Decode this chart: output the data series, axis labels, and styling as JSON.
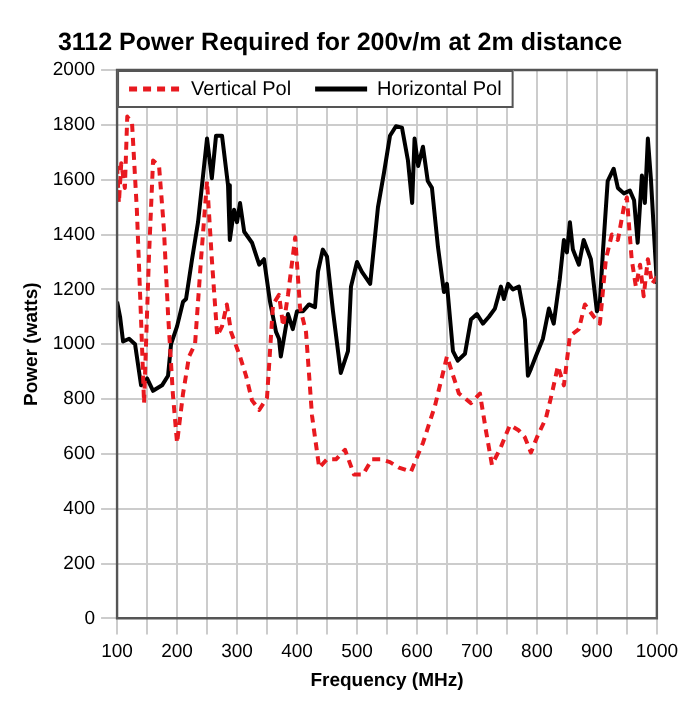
{
  "chart_data": {
    "type": "line",
    "title": "3112 Power Required for 200v/m at 2m distance",
    "xlabel": "Frequency (MHz)",
    "ylabel": "Power (watts)",
    "xlim": [
      100,
      1000
    ],
    "ylim": [
      0,
      2000
    ],
    "xticks": [
      100,
      {
        "value": 150,
        "label": null
      },
      200,
      {
        "value": 250,
        "label": null
      },
      300,
      {
        "value": 350,
        "label": null
      },
      400,
      {
        "value": 450,
        "label": null
      },
      500,
      {
        "value": 550,
        "label": null
      },
      600,
      {
        "value": 650,
        "label": null
      },
      700,
      {
        "value": 750,
        "label": null
      },
      800,
      {
        "value": 850,
        "label": null
      },
      900,
      {
        "value": 950,
        "label": null
      },
      1000
    ],
    "yticks": [
      0,
      200,
      400,
      600,
      800,
      1000,
      1200,
      1400,
      1600,
      1800,
      2000
    ],
    "grid": true,
    "legend": "top left",
    "marker": "none",
    "series": [
      {
        "name": "Vertical Pol",
        "color": "#e8191f",
        "line_style": "dashed",
        "x": [
          100,
          103,
          107,
          113,
          117,
          125,
          133,
          140,
          145,
          153,
          160,
          170,
          178,
          185,
          193,
          200,
          210,
          220,
          230,
          240,
          250,
          258,
          267,
          275,
          283,
          290,
          305,
          315,
          325,
          337,
          350,
          360,
          370,
          377,
          385,
          397,
          405,
          415,
          425,
          437,
          450,
          465,
          480,
          495,
          510,
          525,
          540,
          555,
          570,
          590,
          610,
          630,
          650,
          670,
          690,
          705,
          715,
          725,
          740,
          755,
          770,
          780,
          790,
          800,
          815,
          825,
          835,
          845,
          855,
          870,
          880,
          895,
          905,
          915,
          925,
          935,
          945,
          950,
          958,
          965,
          972,
          978,
          985,
          992,
          1000
        ],
        "values": [
          1650,
          1515,
          1660,
          1570,
          1830,
          1805,
          1490,
          1090,
          785,
          1310,
          1670,
          1650,
          1425,
          1110,
          820,
          640,
          820,
          955,
          1000,
          1310,
          1595,
          1310,
          1030,
          1065,
          1145,
          1045,
          955,
          885,
          795,
          760,
          805,
          1145,
          1180,
          1065,
          1180,
          1390,
          1135,
          1045,
          740,
          550,
          580,
          580,
          615,
          525,
          525,
          580,
          580,
          570,
          550,
          535,
          640,
          775,
          955,
          820,
          785,
          820,
          685,
          560,
          625,
          705,
          685,
          660,
          605,
          660,
          730,
          820,
          920,
          850,
          1030,
          1055,
          1145,
          1100,
          1075,
          1310,
          1400,
          1380,
          1500,
          1535,
          1310,
          1210,
          1290,
          1175,
          1310,
          1220,
          1245
        ]
      },
      {
        "name": "Horizontal Pol",
        "color": "#000000",
        "line_style": "solid",
        "x": [
          100,
          105,
          110,
          120,
          130,
          140,
          150,
          160,
          175,
          185,
          190,
          200,
          210,
          215,
          225,
          235,
          250,
          258,
          265,
          275,
          285,
          288,
          295,
          300,
          305,
          312,
          325,
          337,
          345,
          355,
          365,
          370,
          373,
          380,
          385,
          393,
          400,
          410,
          420,
          430,
          435,
          443,
          450,
          460,
          473,
          485,
          490,
          500,
          508,
          522,
          535,
          545,
          555,
          565,
          575,
          585,
          592,
          596,
          602,
          610,
          618,
          625,
          635,
          645,
          650,
          660,
          668,
          680,
          690,
          700,
          710,
          720,
          730,
          740,
          745,
          752,
          760,
          770,
          780,
          785,
          790,
          798,
          810,
          820,
          828,
          838,
          845,
          850,
          855,
          860,
          870,
          878,
          890,
          900,
          905,
          910,
          918,
          928,
          935,
          945,
          955,
          962,
          968,
          975,
          980,
          985,
          990,
          1000
        ],
        "values": [
          1155,
          1100,
          1010,
          1020,
          1000,
          850,
          875,
          830,
          850,
          885,
          1000,
          1065,
          1155,
          1165,
          1310,
          1445,
          1750,
          1605,
          1760,
          1760,
          1580,
          1380,
          1490,
          1445,
          1515,
          1410,
          1370,
          1290,
          1310,
          1155,
          1045,
          1020,
          955,
          1045,
          1110,
          1055,
          1120,
          1120,
          1145,
          1135,
          1265,
          1345,
          1320,
          1120,
          895,
          975,
          1210,
          1300,
          1265,
          1220,
          1500,
          1625,
          1760,
          1795,
          1790,
          1670,
          1515,
          1750,
          1650,
          1720,
          1595,
          1570,
          1355,
          1190,
          1220,
          975,
          940,
          965,
          1090,
          1110,
          1075,
          1100,
          1130,
          1210,
          1165,
          1220,
          1200,
          1210,
          1090,
          885,
          910,
          955,
          1020,
          1130,
          1075,
          1235,
          1380,
          1335,
          1445,
          1345,
          1290,
          1380,
          1310,
          1120,
          1155,
          1335,
          1595,
          1640,
          1570,
          1550,
          1560,
          1525,
          1370,
          1615,
          1515,
          1750,
          1605,
          1220
        ]
      }
    ]
  }
}
